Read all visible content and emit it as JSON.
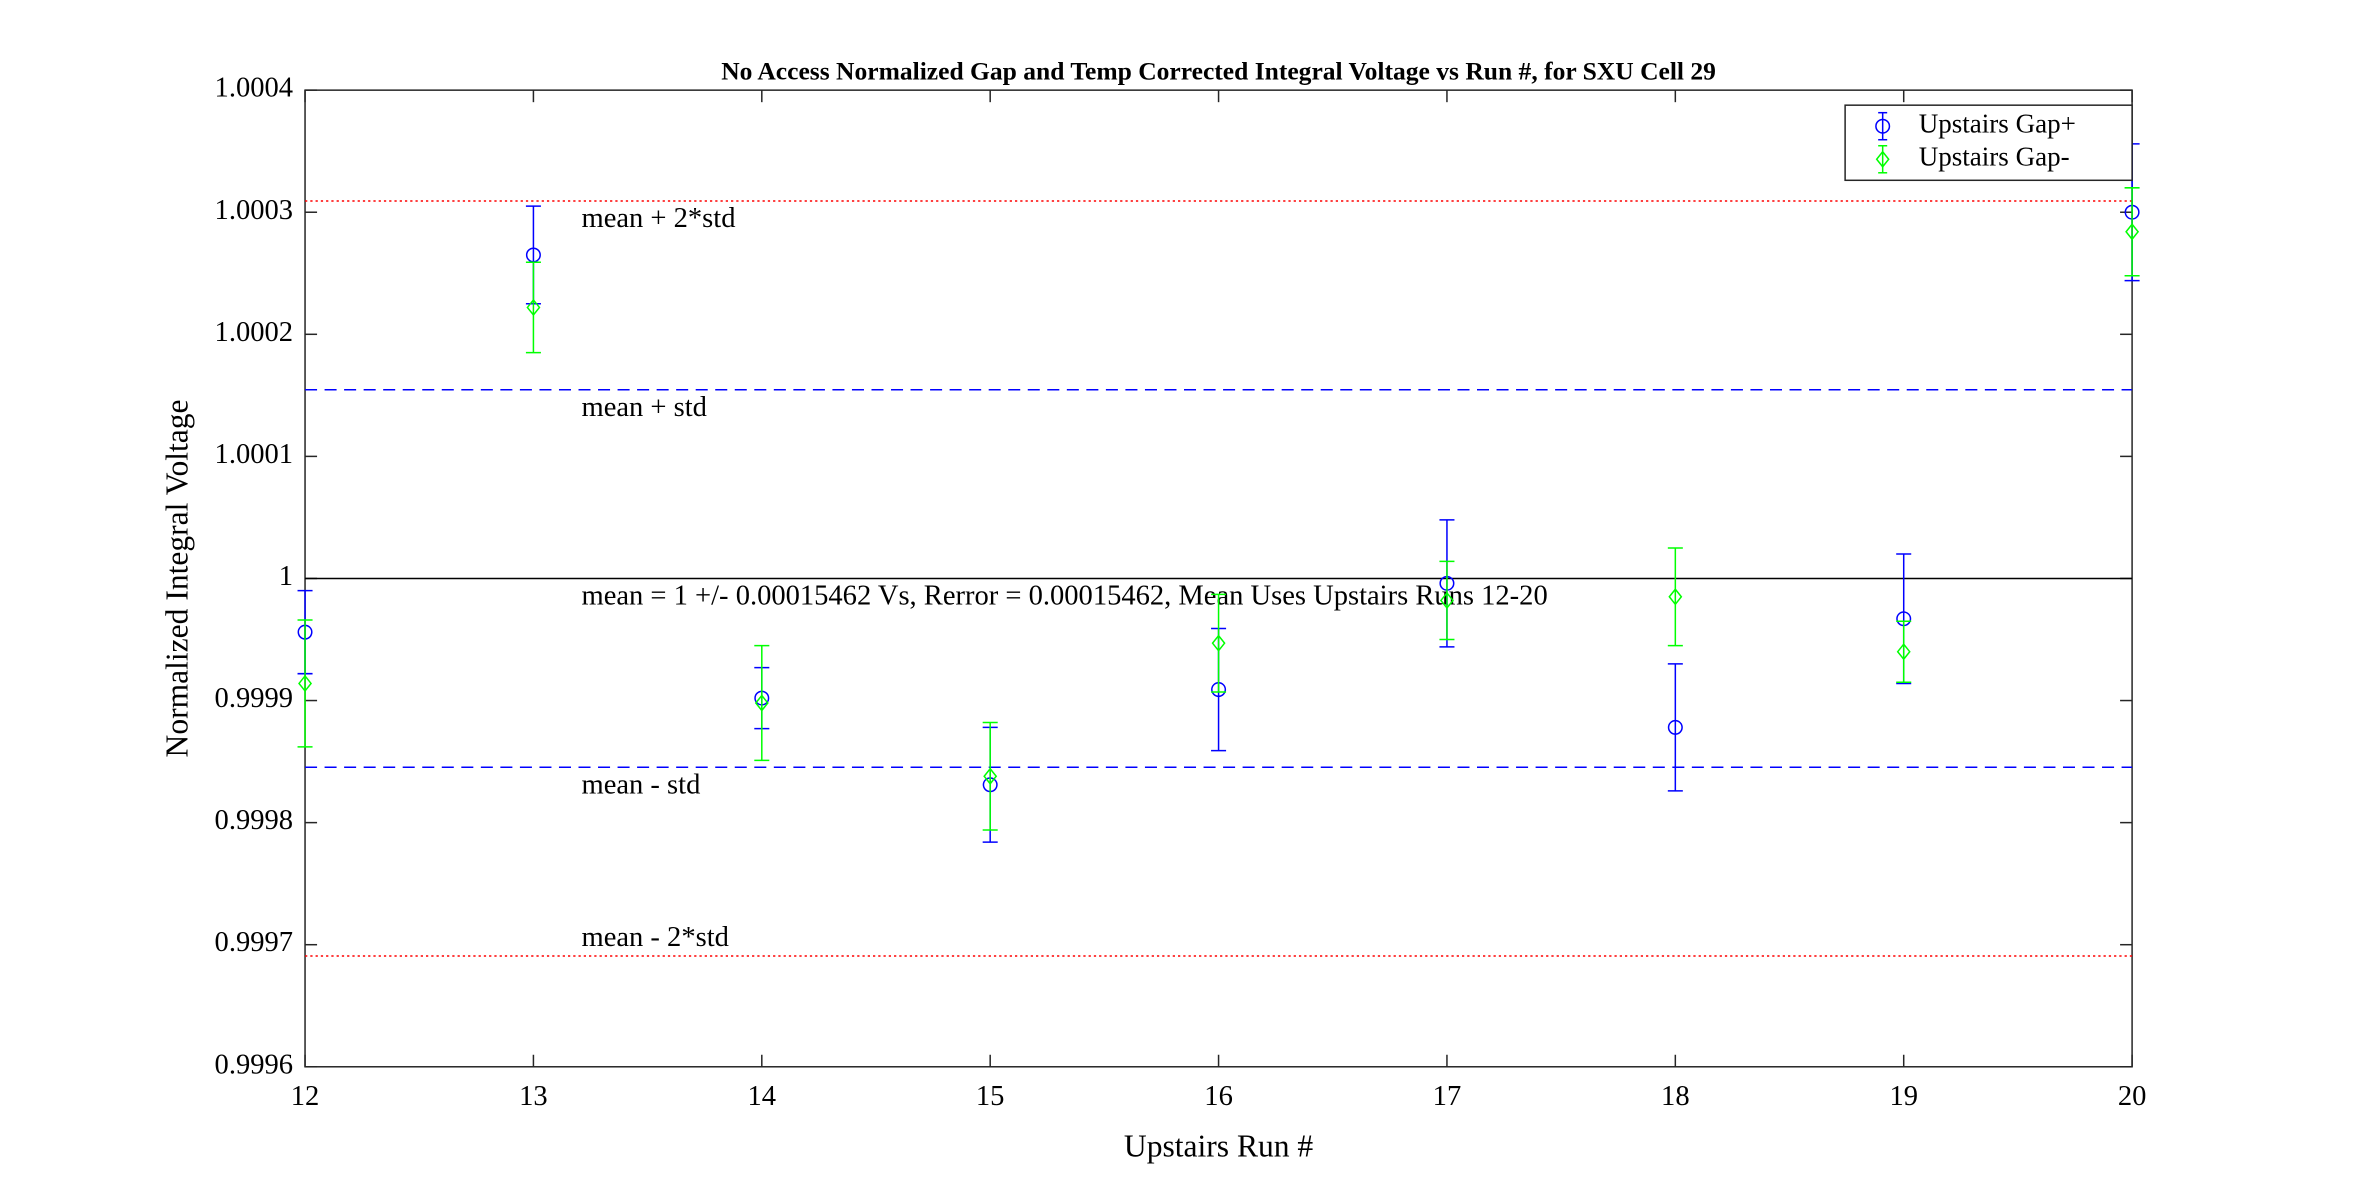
{
  "chart_data": {
    "type": "errorbar",
    "title": "No Access Normalized Gap and Temp Corrected Integral Voltage vs Run #, for SXU Cell 29",
    "x_label": "Upstairs Run #",
    "y_label": "Normalized Integral Voltage",
    "x": [
      12,
      13,
      14,
      15,
      16,
      17,
      18,
      19,
      20
    ],
    "series": [
      {
        "name": "Upstairs Gap+",
        "color": "#0000ff",
        "marker": "circle",
        "values": [
          0.999956,
          1.000265,
          0.999902,
          0.999831,
          0.999909,
          0.999996,
          0.999878,
          0.999967,
          1.0003
        ],
        "errors": [
          3.4e-05,
          4e-05,
          2.5e-05,
          4.7e-05,
          5e-05,
          5.2e-05,
          5.2e-05,
          5.3e-05,
          5.6e-05
        ]
      },
      {
        "name": "Upstairs Gap-",
        "color": "#00ff00",
        "marker": "diamond",
        "values": [
          0.999914,
          1.000222,
          0.999898,
          0.999838,
          0.999947,
          0.999982,
          0.999985,
          0.99994,
          1.000284
        ],
        "errors": [
          5.2e-05,
          3.7e-05,
          4.7e-05,
          4.4e-05,
          4e-05,
          3.2e-05,
          4e-05,
          2.5e-05,
          3.6e-05
        ]
      }
    ],
    "reference_lines": [
      {
        "value": 1.00030924,
        "label": "mean + 2*std",
        "color": "#ff0000",
        "style": "dotted"
      },
      {
        "value": 1.00015462,
        "label": "mean + std",
        "color": "#0000ff",
        "style": "dashed"
      },
      {
        "value": 1,
        "label": "mean = 1 +/- 0.00015462 Vs, Rerror = 0.00015462, Mean Uses Upstairs Runs 12-20",
        "color": "#000000",
        "style": "solid"
      },
      {
        "value": 0.99984538,
        "label": "mean - std",
        "color": "#0000ff",
        "style": "dashed"
      },
      {
        "value": 0.99969076,
        "label": "mean - 2*std",
        "color": "#ff0000",
        "style": "dotted"
      }
    ],
    "xlim": [
      12,
      20
    ],
    "ylim": [
      0.9996,
      1.0004
    ],
    "xticks": [
      12,
      13,
      14,
      15,
      16,
      17,
      18,
      19,
      20
    ],
    "yticks": [
      0.9996,
      0.9997,
      0.9998,
      0.9999,
      1,
      1.0001,
      1.0002,
      1.0003,
      1.0004
    ],
    "legend": "northeast"
  }
}
